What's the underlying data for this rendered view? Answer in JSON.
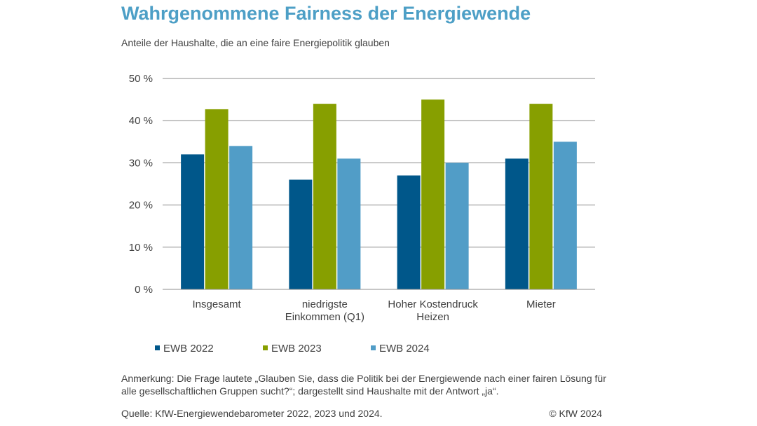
{
  "title": "Wahrgenommene Fairness der Energiewende",
  "subtitle": "Anteile der Haushalte, die an eine faire Energiepolitik glauben",
  "note": "Anmerkung: Die Frage lautete „Glauben Sie, dass die Politik bei der Energiewende nach einer fairen Lösung für alle gesellschaftlichen Gruppen sucht?“; dargestellt sind Haushalte mit der Antwort „ja“.",
  "source": "Quelle: KfW-Energiewendebarometer 2022, 2023 und 2024.",
  "copyright": "© KfW 2024",
  "chart_data": {
    "type": "bar",
    "title": "Wahrgenommene Fairness der Energiewende",
    "subtitle": "Anteile der Haushalte, die an eine faire Energiepolitik glauben",
    "xlabel": "",
    "ylabel": "",
    "ylim": [
      0,
      50
    ],
    "y_ticks": [
      "0 %",
      "10 %",
      "20 %",
      "30 %",
      "40 %",
      "50 %"
    ],
    "grid": true,
    "legend_position": "bottom",
    "categories": [
      [
        "Insgesamt"
      ],
      [
        "niedrigste",
        "Einkommen (Q1)"
      ],
      [
        "Hoher Kostendruck",
        "Heizen"
      ],
      [
        "Mieter"
      ]
    ],
    "series": [
      {
        "name": "EWB 2022",
        "color": "#00578a",
        "values": [
          32,
          26,
          27,
          31
        ]
      },
      {
        "name": "EWB 2023",
        "color": "#879f00",
        "values": [
          42.7,
          44,
          45,
          44
        ]
      },
      {
        "name": "EWB 2024",
        "color": "#519dc7",
        "values": [
          34,
          31,
          30,
          35
        ]
      }
    ]
  }
}
